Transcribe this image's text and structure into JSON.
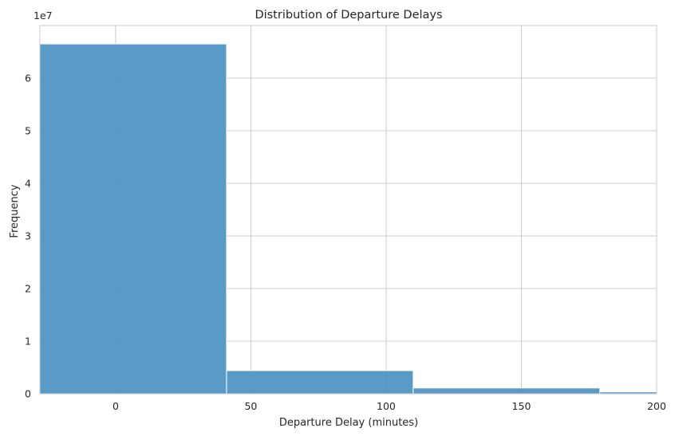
{
  "chart_data": {
    "type": "bar",
    "title": "Distribution of Departure Delays",
    "xlabel": "Departure Delay (minutes)",
    "ylabel": "Frequency",
    "y_offset_label": "1e7",
    "xlim": [
      -28,
      200
    ],
    "ylim": [
      0,
      7.0
    ],
    "x_ticks": [
      0,
      50,
      100,
      150,
      200
    ],
    "y_ticks": [
      0,
      1,
      2,
      3,
      4,
      5,
      6
    ],
    "grid": true,
    "bar_color": "#5698c6",
    "bins": [
      {
        "start": -28,
        "end": 41,
        "value": 6.65
      },
      {
        "start": 41,
        "end": 110,
        "value": 0.44
      },
      {
        "start": 110,
        "end": 179,
        "value": 0.11
      },
      {
        "start": 179,
        "end": 248,
        "value": 0.035
      }
    ]
  }
}
